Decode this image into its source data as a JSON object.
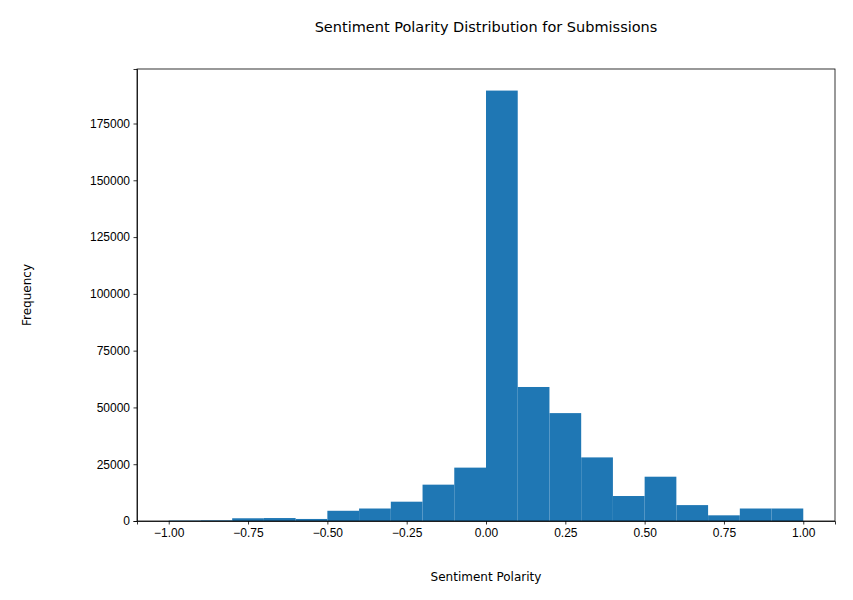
{
  "chart_data": {
    "type": "histogram",
    "title": "Sentiment Polarity Distribution for Submissions",
    "x_label": "Sentiment Polarity",
    "y_label": "Frequency",
    "bins": [
      -1.0,
      -0.9,
      -0.8,
      -0.7,
      -0.6,
      -0.5,
      -0.4,
      -0.3,
      -0.2,
      -0.1,
      0.0,
      0.1,
      0.2,
      0.3,
      0.4,
      0.5,
      0.6,
      0.7,
      0.8,
      0.9,
      1.0
    ],
    "values": [
      200,
      300,
      1200,
      1300,
      900,
      4500,
      5500,
      8500,
      16000,
      23500,
      189500,
      59000,
      47500,
      28000,
      11000,
      19500,
      7000,
      2500,
      5500,
      5500
    ],
    "color": "#1f77b4",
    "xlim": [
      -1.1,
      1.1
    ],
    "xticks": [
      {
        "value": -1.0,
        "label": "−1.00"
      },
      {
        "value": -0.75,
        "label": "−0.75"
      },
      {
        "value": -0.5,
        "label": "−0.50"
      },
      {
        "value": -0.25,
        "label": "−0.25"
      },
      {
        "value": 0.0,
        "label": "0.00"
      },
      {
        "value": 0.25,
        "label": "0.25"
      },
      {
        "value": 0.5,
        "label": "0.50"
      },
      {
        "value": 0.75,
        "label": "0.75"
      },
      {
        "value": 1.0,
        "label": "1.00"
      }
    ],
    "ylim": [
      0,
      199000
    ],
    "yticks": [
      0,
      25000,
      50000,
      75000,
      100000,
      125000,
      150000,
      175000
    ],
    "grid": false
  }
}
